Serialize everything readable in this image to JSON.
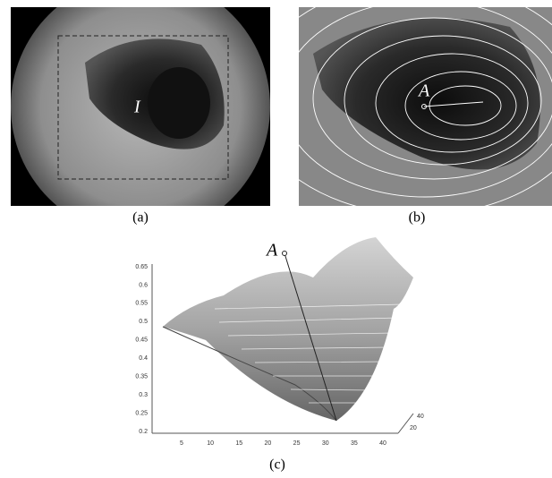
{
  "panels": [
    {
      "caption": "(a)",
      "annotation": "I"
    },
    {
      "caption": "(b)",
      "annotation": "A"
    },
    {
      "caption": "(c)",
      "annotation": "A",
      "z_ticks": [
        0.2,
        0.25,
        0.3,
        0.35,
        0.4,
        0.45,
        0.5,
        0.55,
        0.6,
        0.65
      ],
      "x_ticks": [
        5,
        10,
        15,
        20,
        25,
        30,
        35,
        40
      ],
      "y_ticks": [
        20,
        40
      ]
    }
  ]
}
